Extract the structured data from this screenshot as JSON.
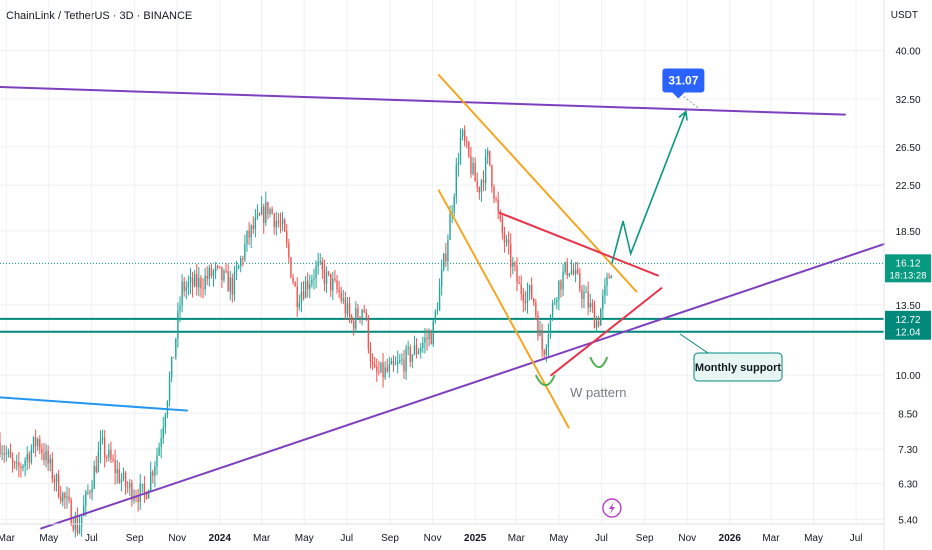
{
  "header": {
    "title": "ChainLink / TetherUS · 3D · BINANCE",
    "unit": "USDT"
  },
  "colors": {
    "up": "#26a69a",
    "down": "#ef5350",
    "channel_purple": "#7e3fbf",
    "trendline_orange": "#f5a623",
    "trendline_red": "#e8334a",
    "trendline_blue": "#2196f3",
    "projection_green": "#089981",
    "support_teal": "#00897b",
    "target_badge": "#2962ff",
    "pattern_green": "#4caf50"
  },
  "chart_data": {
    "type": "candlestick",
    "symbol": "ChainLink / TetherUS",
    "interval": "3D",
    "exchange": "BINANCE",
    "y_scale": "log",
    "ylim": [
      5.3,
      44
    ],
    "y_ticks": [
      40.0,
      32.5,
      26.5,
      22.5,
      18.5,
      13.5,
      10.0,
      8.5,
      7.3,
      6.3,
      5.4
    ],
    "y_tick_labels": [
      "40.00",
      "32.50",
      "26.50",
      "22.50",
      "18.50",
      "13.50",
      "10.00",
      "8.50",
      "7.30",
      "6.30",
      "5.40"
    ],
    "x_range": [
      "2023-02-20",
      "2026-08-10"
    ],
    "x_ticks": [
      {
        "date": "2023-03-01",
        "label": "Mar"
      },
      {
        "date": "2023-05-01",
        "label": "May"
      },
      {
        "date": "2023-07-01",
        "label": "Jul"
      },
      {
        "date": "2023-09-01",
        "label": "Sep"
      },
      {
        "date": "2023-11-01",
        "label": "Nov"
      },
      {
        "date": "2024-01-01",
        "label": "2024"
      },
      {
        "date": "2024-03-01",
        "label": "Mar"
      },
      {
        "date": "2024-05-01",
        "label": "May"
      },
      {
        "date": "2024-07-01",
        "label": "Jul"
      },
      {
        "date": "2024-09-01",
        "label": "Sep"
      },
      {
        "date": "2024-11-01",
        "label": "Nov"
      },
      {
        "date": "2025-01-01",
        "label": "2025"
      },
      {
        "date": "2025-03-01",
        "label": "Mar"
      },
      {
        "date": "2025-05-01",
        "label": "May"
      },
      {
        "date": "2025-07-01",
        "label": "Jul"
      },
      {
        "date": "2025-09-01",
        "label": "Sep"
      },
      {
        "date": "2025-11-01",
        "label": "Nov"
      },
      {
        "date": "2026-01-01",
        "label": "2026"
      },
      {
        "date": "2026-03-01",
        "label": "Mar"
      },
      {
        "date": "2026-05-01",
        "label": "May"
      },
      {
        "date": "2026-07-01",
        "label": "Jul"
      }
    ],
    "price_path": [
      [
        "2023-02-20",
        7.5
      ],
      [
        "2023-03-15",
        6.6
      ],
      [
        "2023-04-15",
        7.6
      ],
      [
        "2023-05-10",
        6.4
      ],
      [
        "2023-06-12",
        5.2
      ],
      [
        "2023-07-15",
        7.4
      ],
      [
        "2023-08-20",
        6.2
      ],
      [
        "2023-09-15",
        6.0
      ],
      [
        "2023-10-05",
        7.3
      ],
      [
        "2023-10-25",
        10.5
      ],
      [
        "2023-11-08",
        14.5
      ],
      [
        "2023-12-01",
        14.8
      ],
      [
        "2023-12-25",
        15.5
      ],
      [
        "2024-01-20",
        14.6
      ],
      [
        "2024-02-10",
        18.0
      ],
      [
        "2024-03-10",
        20.5
      ],
      [
        "2024-04-01",
        18.5
      ],
      [
        "2024-04-20",
        14.0
      ],
      [
        "2024-05-20",
        15.8
      ],
      [
        "2024-06-20",
        14.2
      ],
      [
        "2024-07-08",
        12.5
      ],
      [
        "2024-07-25",
        13.5
      ],
      [
        "2024-08-08",
        10.0
      ],
      [
        "2024-09-05",
        10.2
      ],
      [
        "2024-10-10",
        11.2
      ],
      [
        "2024-11-01",
        12.0
      ],
      [
        "2024-11-20",
        17.0
      ],
      [
        "2024-12-12",
        28.0
      ],
      [
        "2025-01-05",
        22.0
      ],
      [
        "2025-01-20",
        25.5
      ],
      [
        "2025-02-05",
        19.0
      ],
      [
        "2025-03-05",
        14.5
      ],
      [
        "2025-03-25",
        14.0
      ],
      [
        "2025-04-08",
        11.0
      ],
      [
        "2025-04-28",
        14.5
      ],
      [
        "2025-05-15",
        16.0
      ],
      [
        "2025-06-01",
        14.5
      ],
      [
        "2025-06-25",
        12.5
      ],
      [
        "2025-07-05",
        14.0
      ],
      [
        "2025-07-16",
        16.12
      ]
    ],
    "candle_body_pct": 0.03,
    "annotations": {
      "target_badge": {
        "label": "31.07",
        "date": "2025-10-25",
        "price": 31.07
      },
      "w_pattern": {
        "label": "W pattern",
        "date": "2025-04-30",
        "price": 9.75
      },
      "monthly_support_label": {
        "label": "Monthly support"
      },
      "price_tags": [
        {
          "label": "16.12",
          "price": 16.12,
          "color": "#089981",
          "sub": "18:13:28"
        },
        {
          "label": "12.72",
          "price": 12.72,
          "color": "#00897b"
        },
        {
          "label": "12.04",
          "price": 12.04,
          "color": "#00897b"
        }
      ],
      "support_lines": [
        12.72,
        12.04
      ],
      "current_price": 16.12,
      "projection_path": [
        [
          "2025-07-16",
          16.12
        ],
        [
          "2025-08-01",
          19.3
        ],
        [
          "2025-08-12",
          16.8
        ],
        [
          "2025-10-30",
          30.8
        ]
      ],
      "lines": {
        "upper_channel": [
          [
            "2023-02-20",
            34.2
          ],
          [
            "2026-06-15",
            30.4
          ]
        ],
        "rising_support": [
          [
            "2023-04-20",
            5.2
          ],
          [
            "2026-08-10",
            17.5
          ]
        ],
        "blue_trendline": [
          [
            "2023-02-20",
            9.1
          ],
          [
            "2023-11-15",
            8.6
          ]
        ],
        "orange_upper": [
          [
            "2024-11-10",
            36.0
          ],
          [
            "2025-08-20",
            14.3
          ]
        ],
        "orange_lower": [
          [
            "2024-11-10",
            22.0
          ],
          [
            "2025-05-15",
            8.0
          ]
        ],
        "red_upper": [
          [
            "2025-02-05",
            20.0
          ],
          [
            "2025-09-20",
            15.3
          ]
        ],
        "red_lower": [
          [
            "2025-04-20",
            10.0
          ],
          [
            "2025-09-25",
            14.5
          ]
        ]
      }
    }
  }
}
